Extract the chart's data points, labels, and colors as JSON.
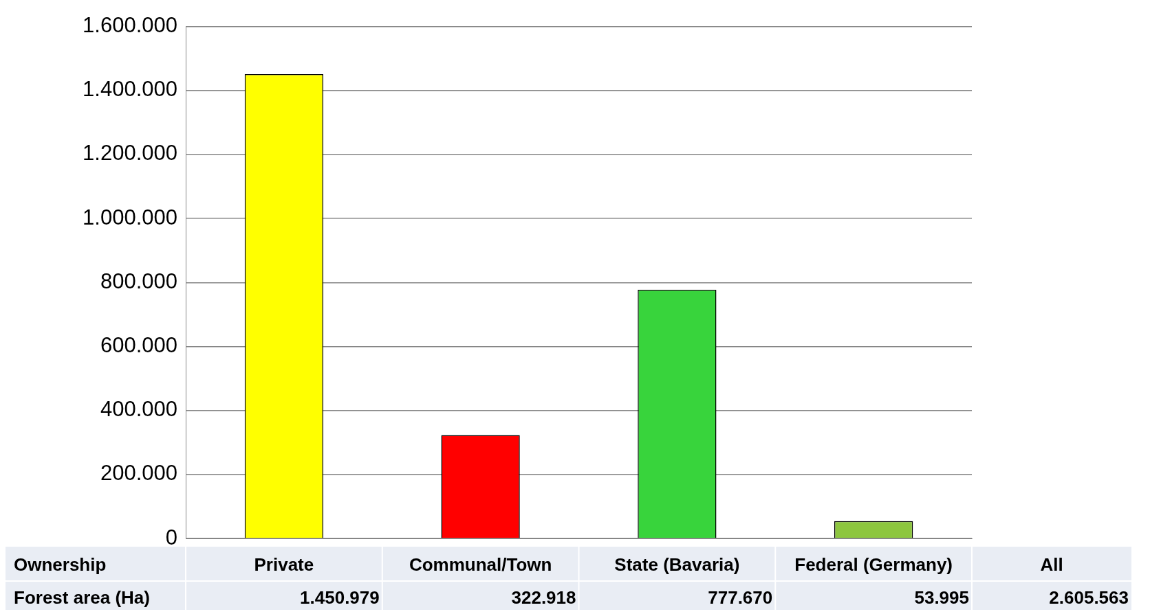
{
  "chart_data": {
    "type": "bar",
    "categories": [
      "Private",
      "Communal/Town",
      "State (Bavaria)",
      "Federal (Germany)"
    ],
    "values": [
      1450979,
      322918,
      777670,
      53995
    ],
    "colors": [
      "#ffff00",
      "#ff0000",
      "#38d43c",
      "#8dc63f"
    ],
    "value_labels": [
      "1.450.979",
      "322.918",
      "777.670",
      "53.995"
    ],
    "ylim": [
      0,
      1600000
    ],
    "yticks": [
      {
        "value": 0,
        "label": "0"
      },
      {
        "value": 200000,
        "label": "200.000"
      },
      {
        "value": 400000,
        "label": "400.000"
      },
      {
        "value": 600000,
        "label": "600.000"
      },
      {
        "value": 800000,
        "label": "800.000"
      },
      {
        "value": 1000000,
        "label": "1.000.000"
      },
      {
        "value": 1200000,
        "label": "1.200.000"
      },
      {
        "value": 1400000,
        "label": "1.400.000"
      },
      {
        "value": 1600000,
        "label": "1.600.000"
      }
    ],
    "grid": "y",
    "legend": false,
    "annotations": [
      "Ownership",
      "Forest area (Ha)",
      "All",
      "2.605.563"
    ]
  }
}
